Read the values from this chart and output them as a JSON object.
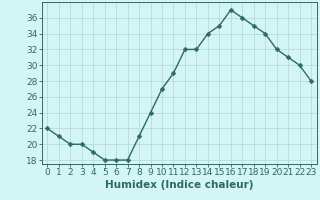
{
  "x": [
    0,
    1,
    2,
    3,
    4,
    5,
    6,
    7,
    8,
    9,
    10,
    11,
    12,
    13,
    14,
    15,
    16,
    17,
    18,
    19,
    20,
    21,
    22,
    23
  ],
  "y": [
    22,
    21,
    20,
    20,
    19,
    18,
    18,
    18,
    21,
    24,
    27,
    29,
    32,
    32,
    34,
    35,
    37,
    36,
    35,
    34,
    32,
    31,
    30,
    28
  ],
  "xlabel": "Humidex (Indice chaleur)",
  "bg_color": "#d4f5f5",
  "grid_color": "#b8dada",
  "line_color": "#2d6b5e",
  "marker_color": "#2d6b5e",
  "ylim": [
    17.5,
    38
  ],
  "xlim": [
    -0.5,
    23.5
  ],
  "yticks": [
    18,
    20,
    22,
    24,
    26,
    28,
    30,
    32,
    34,
    36
  ],
  "xticks": [
    0,
    1,
    2,
    3,
    4,
    5,
    6,
    7,
    8,
    9,
    10,
    11,
    12,
    13,
    14,
    15,
    16,
    17,
    18,
    19,
    20,
    21,
    22,
    23
  ],
  "tick_label_fontsize": 6.5,
  "xlabel_fontsize": 7.5,
  "line_width": 1.0,
  "marker_size": 2.5
}
